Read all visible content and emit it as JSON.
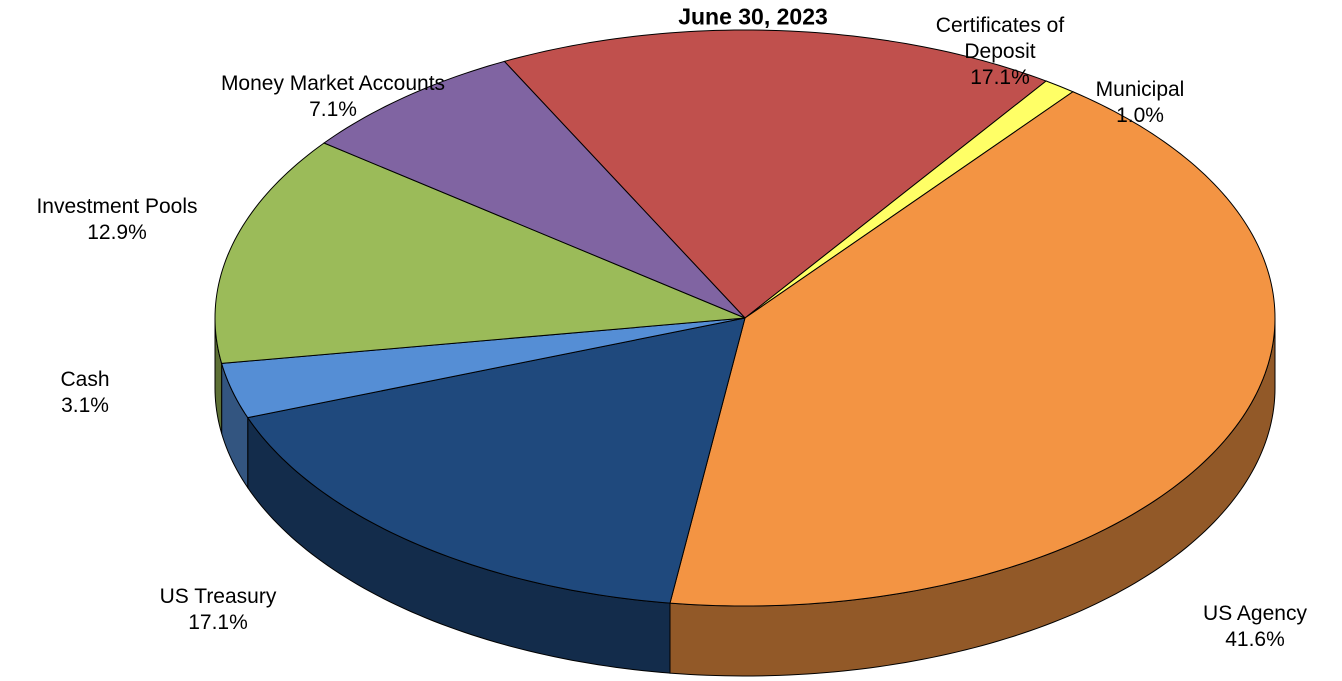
{
  "chart_data": {
    "type": "pie",
    "title": "June 30, 2023",
    "categories": [
      "Certificates of Deposit",
      "Municipal",
      "US Agency",
      "US Treasury",
      "Cash",
      "Investment Pools",
      "Money Market Accounts"
    ],
    "values": [
      17.1,
      1.0,
      41.6,
      17.1,
      3.1,
      12.9,
      7.1
    ],
    "value_labels": [
      "17.1%",
      "1.0%",
      "41.6%",
      "17.1%",
      "3.1%",
      "12.9%",
      "7.1%"
    ],
    "colors": [
      "#c0504d",
      "#ffff66",
      "#f39443",
      "#1f497d",
      "#558ed5",
      "#9bbb59",
      "#8064a2"
    ]
  }
}
